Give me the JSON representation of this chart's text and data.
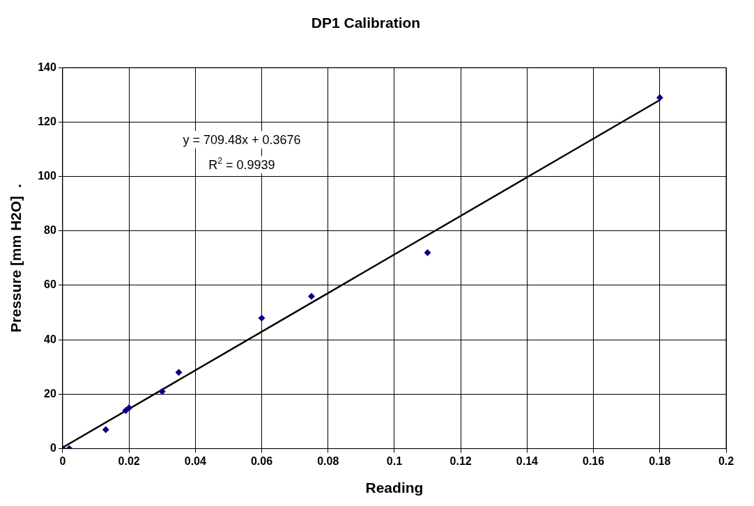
{
  "chart_data": {
    "type": "scatter",
    "title": "DP1 Calibration",
    "xlabel": "Reading",
    "ylabel": "Pressure [mm H2O]  .",
    "xlim": [
      0,
      0.2
    ],
    "xticks": [
      0,
      0.02,
      0.04,
      0.06,
      0.08,
      0.1,
      0.12,
      0.14,
      0.16,
      0.18,
      0.2
    ],
    "ylim": [
      0,
      140
    ],
    "yticks": [
      0,
      20,
      40,
      60,
      80,
      100,
      120,
      140
    ],
    "grid": true,
    "legend": false,
    "marker": "diamond",
    "series": [
      {
        "type": "scatter",
        "color": "#000080",
        "x": [
          0,
          0.002,
          0.013,
          0.019,
          0.02,
          0.03,
          0.035,
          0.06,
          0.075,
          0.11,
          0.18
        ],
        "values": [
          0,
          0,
          7,
          14,
          15,
          21,
          28,
          48,
          56,
          72,
          129
        ]
      },
      {
        "type": "line",
        "color": "#000000",
        "x": [
          0,
          0.18
        ],
        "values": [
          0.4,
          128.1
        ],
        "marker": "none",
        "line_style": "solid"
      }
    ],
    "annotations": [
      "y = 709.48x + 0.3676",
      "R$^{2}$ = 0.9939"
    ]
  }
}
